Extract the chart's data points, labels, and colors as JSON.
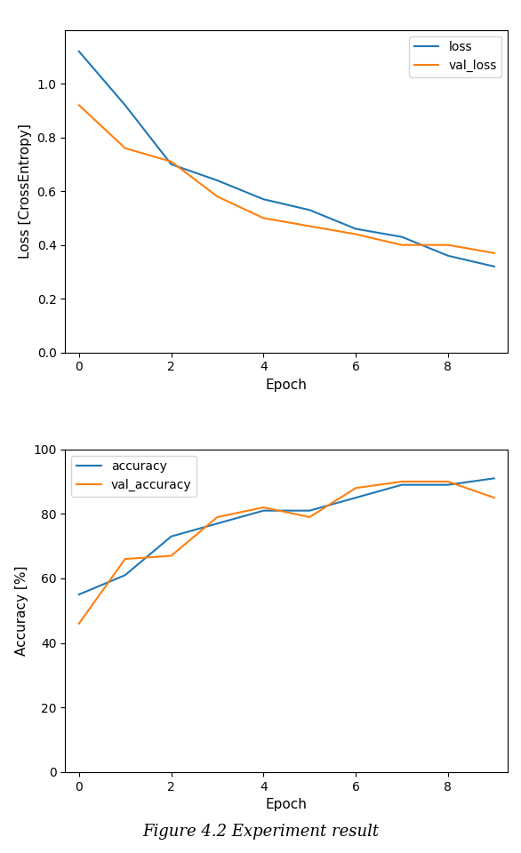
{
  "epochs": [
    0,
    1,
    2,
    3,
    4,
    5,
    6,
    7,
    8,
    9
  ],
  "loss": [
    1.12,
    0.92,
    0.7,
    0.64,
    0.57,
    0.53,
    0.46,
    0.43,
    0.36,
    0.32
  ],
  "val_loss": [
    0.92,
    0.76,
    0.71,
    0.58,
    0.5,
    0.47,
    0.44,
    0.4,
    0.4,
    0.37
  ],
  "accuracy": [
    55,
    61,
    73,
    77,
    81,
    81,
    85,
    89,
    89,
    91
  ],
  "val_accuracy": [
    46,
    66,
    67,
    79,
    82,
    79,
    88,
    90,
    90,
    85
  ],
  "loss_color": "#1f77b4",
  "val_loss_color": "#ff7f0e",
  "acc_color": "#1f77b4",
  "val_acc_color": "#ff7f0e",
  "loss_ylabel": "Loss [CrossEntropy]",
  "acc_ylabel": "Accuracy [%]",
  "xlabel": "Epoch",
  "loss_ylim": [
    0.0,
    1.2
  ],
  "acc_ylim": [
    0,
    100
  ],
  "loss_yticks": [
    0.0,
    0.2,
    0.4,
    0.6,
    0.8,
    1.0
  ],
  "acc_yticks": [
    0,
    20,
    40,
    60,
    80,
    100
  ],
  "xticks": [
    0,
    2,
    4,
    6,
    8
  ],
  "caption": "Figure 4.2 Experiment result"
}
